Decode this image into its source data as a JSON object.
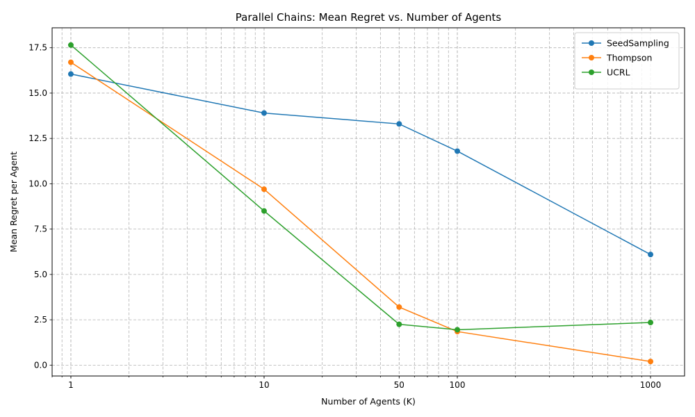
{
  "chart_data": {
    "type": "line",
    "title": "Parallel Chains: Mean Regret vs. Number of Agents",
    "xlabel": "Number of Agents (K)",
    "ylabel": "Mean Regret per Agent",
    "xscale": "log",
    "xlim": [
      0.8,
      1500
    ],
    "ylim": [
      -0.6,
      18.6
    ],
    "x": [
      1,
      10,
      50,
      100,
      1000
    ],
    "xtick_labels": [
      "1",
      "10",
      "50",
      "100",
      "1000"
    ],
    "yticks": [
      0.0,
      2.5,
      5.0,
      7.5,
      10.0,
      12.5,
      15.0,
      17.5
    ],
    "ytick_labels": [
      "0.0",
      "2.5",
      "5.0",
      "7.5",
      "10.0",
      "12.5",
      "15.0",
      "17.5"
    ],
    "grid": true,
    "legend_position": "top-right",
    "series": [
      {
        "name": "SeedSampling",
        "color": "#1f77b4",
        "values": [
          16.05,
          13.9,
          13.3,
          11.8,
          6.1
        ]
      },
      {
        "name": "Thompson",
        "color": "#ff7f0e",
        "values": [
          16.7,
          9.7,
          3.2,
          1.85,
          0.2
        ]
      },
      {
        "name": "UCRL",
        "color": "#2ca02c",
        "values": [
          17.65,
          8.5,
          2.25,
          1.95,
          2.35
        ]
      }
    ]
  }
}
